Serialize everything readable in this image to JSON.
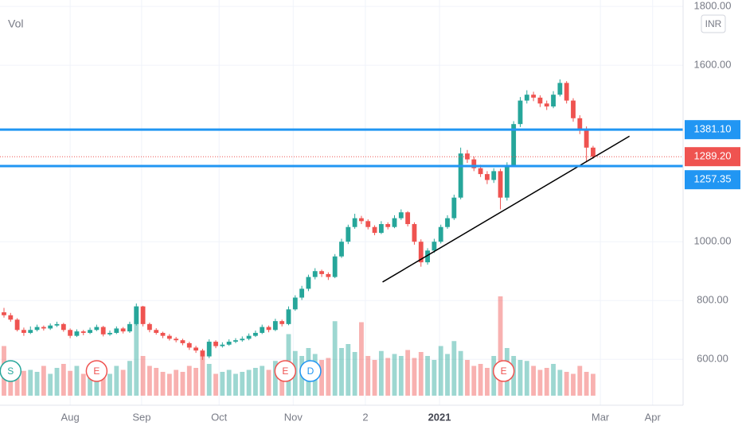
{
  "chart_data": {
    "type": "candlestick",
    "volume_label": "Vol",
    "currency": "INR",
    "up_color": "#26a69a",
    "down_color": "#ef5350",
    "ylim": [
      444,
      1822
    ],
    "yticks": [
      {
        "value": 600,
        "label": "600.00"
      },
      {
        "value": 800,
        "label": "800.00"
      },
      {
        "value": 1000,
        "label": "1000.00"
      },
      {
        "value": 1600,
        "label": "1600.00"
      },
      {
        "value": 1800,
        "label": "1800.00"
      }
    ],
    "xlim": [
      -0.6,
      102.6
    ],
    "xticks": [
      {
        "value": 10,
        "label": "Aug"
      },
      {
        "value": 20.8,
        "label": "Sep"
      },
      {
        "value": 32.5,
        "label": "Oct"
      },
      {
        "value": 43.7,
        "label": "Nov"
      },
      {
        "value": 54.6,
        "label": "2"
      },
      {
        "value": 65.8,
        "label": "2021"
      },
      {
        "value": 90.1,
        "label": "Mar"
      },
      {
        "value": 98,
        "label": "Apr"
      }
    ],
    "grid": true,
    "ohlc": [
      [
        760,
        775,
        742,
        750
      ],
      [
        750,
        758,
        728,
        735
      ],
      [
        735,
        740,
        695,
        700
      ],
      [
        700,
        708,
        680,
        690
      ],
      [
        690,
        712,
        686,
        700
      ],
      [
        700,
        718,
        695,
        710
      ],
      [
        710,
        715,
        698,
        705
      ],
      [
        705,
        722,
        700,
        715
      ],
      [
        715,
        728,
        710,
        720
      ],
      [
        720,
        724,
        694,
        700
      ],
      [
        700,
        705,
        672,
        680
      ],
      [
        680,
        702,
        676,
        695
      ],
      [
        695,
        700,
        682,
        690
      ],
      [
        690,
        708,
        686,
        700
      ],
      [
        700,
        718,
        696,
        710
      ],
      [
        710,
        714,
        678,
        685
      ],
      [
        685,
        698,
        680,
        690
      ],
      [
        690,
        712,
        686,
        705
      ],
      [
        705,
        710,
        688,
        695
      ],
      [
        695,
        728,
        690,
        720
      ],
      [
        720,
        790,
        715,
        780
      ],
      [
        780,
        782,
        712,
        720
      ],
      [
        720,
        725,
        692,
        700
      ],
      [
        700,
        706,
        684,
        690
      ],
      [
        690,
        694,
        672,
        680
      ],
      [
        680,
        686,
        664,
        670
      ],
      [
        670,
        676,
        658,
        665
      ],
      [
        665,
        670,
        648,
        655
      ],
      [
        655,
        660,
        632,
        640
      ],
      [
        640,
        646,
        622,
        630
      ],
      [
        630,
        636,
        598,
        610
      ],
      [
        610,
        668,
        604,
        660
      ],
      [
        660,
        665,
        638,
        645
      ],
      [
        645,
        658,
        640,
        650
      ],
      [
        650,
        668,
        646,
        660
      ],
      [
        660,
        672,
        655,
        665
      ],
      [
        665,
        678,
        660,
        670
      ],
      [
        670,
        688,
        665,
        680
      ],
      [
        680,
        698,
        676,
        690
      ],
      [
        690,
        718,
        686,
        710
      ],
      [
        710,
        715,
        692,
        700
      ],
      [
        700,
        738,
        696,
        730
      ],
      [
        730,
        735,
        712,
        720
      ],
      [
        720,
        780,
        716,
        770
      ],
      [
        770,
        818,
        765,
        810
      ],
      [
        810,
        850,
        802,
        840
      ],
      [
        840,
        888,
        832,
        880
      ],
      [
        880,
        910,
        872,
        900
      ],
      [
        900,
        905,
        880,
        890
      ],
      [
        890,
        896,
        870,
        880
      ],
      [
        880,
        958,
        876,
        950
      ],
      [
        950,
        1010,
        945,
        1000
      ],
      [
        1000,
        1058,
        992,
        1050
      ],
      [
        1050,
        1095,
        1044,
        1080
      ],
      [
        1080,
        1088,
        1060,
        1070
      ],
      [
        1070,
        1076,
        1042,
        1050
      ],
      [
        1050,
        1056,
        1022,
        1030
      ],
      [
        1030,
        1070,
        1026,
        1060
      ],
      [
        1060,
        1066,
        1042,
        1050
      ],
      [
        1050,
        1090,
        1046,
        1080
      ],
      [
        1080,
        1110,
        1074,
        1100
      ],
      [
        1100,
        1104,
        1052,
        1060
      ],
      [
        1060,
        1066,
        990,
        1000
      ],
      [
        1000,
        1008,
        915,
        930
      ],
      [
        930,
        978,
        922,
        970
      ],
      [
        970,
        1010,
        962,
        1000
      ],
      [
        1000,
        1058,
        994,
        1050
      ],
      [
        1050,
        1090,
        1044,
        1080
      ],
      [
        1080,
        1160,
        1074,
        1150
      ],
      [
        1150,
        1320,
        1144,
        1300
      ],
      [
        1300,
        1312,
        1268,
        1280
      ],
      [
        1280,
        1290,
        1240,
        1250
      ],
      [
        1250,
        1262,
        1220,
        1230
      ],
      [
        1230,
        1240,
        1196,
        1210
      ],
      [
        1210,
        1250,
        1200,
        1240
      ],
      [
        1240,
        1248,
        1110,
        1150
      ],
      [
        1150,
        1270,
        1140,
        1260
      ],
      [
        1260,
        1410,
        1254,
        1400
      ],
      [
        1400,
        1492,
        1390,
        1480
      ],
      [
        1480,
        1515,
        1470,
        1500
      ],
      [
        1500,
        1510,
        1478,
        1490
      ],
      [
        1490,
        1498,
        1458,
        1470
      ],
      [
        1470,
        1480,
        1448,
        1460
      ],
      [
        1460,
        1512,
        1454,
        1500
      ],
      [
        1500,
        1552,
        1494,
        1540
      ],
      [
        1540,
        1546,
        1470,
        1480
      ],
      [
        1480,
        1488,
        1408,
        1420
      ],
      [
        1420,
        1430,
        1366,
        1380
      ],
      [
        1380,
        1392,
        1270,
        1320
      ],
      [
        1320,
        1326,
        1282,
        1289.2
      ]
    ],
    "volume": [
      50,
      30,
      28,
      25,
      26,
      24,
      30,
      22,
      28,
      32,
      25,
      30,
      22,
      26,
      28,
      24,
      22,
      30,
      26,
      35,
      90,
      40,
      30,
      28,
      24,
      22,
      26,
      24,
      30,
      28,
      40,
      32,
      22,
      24,
      26,
      22,
      24,
      26,
      28,
      30,
      26,
      35,
      30,
      62,
      45,
      40,
      48,
      42,
      36,
      38,
      75,
      48,
      52,
      44,
      74,
      40,
      36,
      45,
      38,
      42,
      40,
      46,
      38,
      44,
      40,
      36,
      50,
      42,
      55,
      45,
      36,
      30,
      32,
      28,
      40,
      100,
      48,
      40,
      36,
      35,
      30,
      26,
      28,
      32,
      26,
      24,
      22,
      30,
      24,
      22
    ],
    "levels": [
      {
        "value": 1381.1,
        "label": "1381.10",
        "color": "#2196f3"
      },
      {
        "value": 1257.35,
        "label": "1257.35",
        "color": "#2196f3"
      }
    ],
    "last_price": {
      "value": 1289.2,
      "label": "1289.20",
      "color": "#ef5350"
    },
    "trend_line": {
      "from": [
        57.2,
        863
      ],
      "to": [
        94.5,
        1359
      ],
      "color": "#000000"
    },
    "events": [
      {
        "label": "S",
        "index": 1,
        "color": "#26a69a"
      },
      {
        "label": "E",
        "index": 14,
        "color": "#ef5350"
      },
      {
        "label": "E",
        "index": 42.5,
        "color": "#ef5350"
      },
      {
        "label": "D",
        "index": 46.3,
        "color": "#2196f3"
      },
      {
        "label": "E",
        "index": 75.5,
        "color": "#ef5350"
      }
    ]
  }
}
